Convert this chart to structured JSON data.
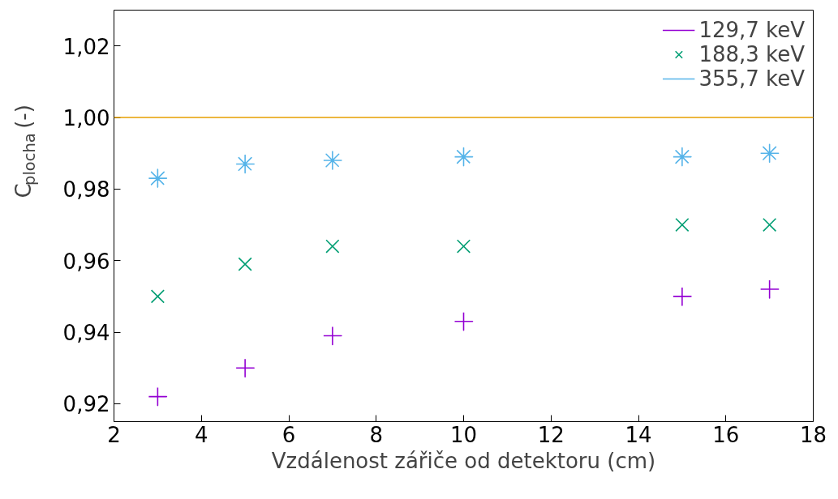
{
  "chart_data": {
    "type": "scatter",
    "xlabel": "Vzdálenost zářiče od detektoru (cm)",
    "ylabel": "C$_{plocha}$ (-)",
    "x": [
      3,
      5,
      7,
      10,
      15,
      17
    ],
    "series": [
      {
        "name": "129,7 keV",
        "color": "#9400d3",
        "marker": "cross",
        "values": [
          0.922,
          0.93,
          0.939,
          0.943,
          0.95,
          0.952
        ]
      },
      {
        "name": "188,3 keV",
        "color": "#009e73",
        "marker": "x",
        "values": [
          0.95,
          0.959,
          0.964,
          0.964,
          0.97,
          0.97
        ]
      },
      {
        "name": "355,7 keV",
        "color": "#56b4e9",
        "values": [
          0.983,
          0.987,
          0.988,
          0.989,
          0.989,
          0.99
        ]
      }
    ],
    "xlim": [
      2,
      18
    ],
    "xticks": [
      2,
      4,
      6,
      8,
      10,
      12,
      14,
      16,
      18
    ],
    "ylim": [
      0.915,
      1.03
    ],
    "yticks": [
      {
        "value": 0.92,
        "label": "0,92"
      },
      {
        "value": 0.94,
        "label": "0,94"
      },
      {
        "value": 0.96,
        "label": "0,96"
      },
      {
        "value": 0.98,
        "label": "0,98"
      },
      {
        "value": 1.0,
        "label": "1,00"
      },
      {
        "value": 1.02,
        "label": "1,02"
      }
    ],
    "ref_lines": [
      {
        "axis": "y",
        "value": 1.0,
        "color": "#e69f00"
      }
    ],
    "legend": "top right",
    "grid": false
  }
}
